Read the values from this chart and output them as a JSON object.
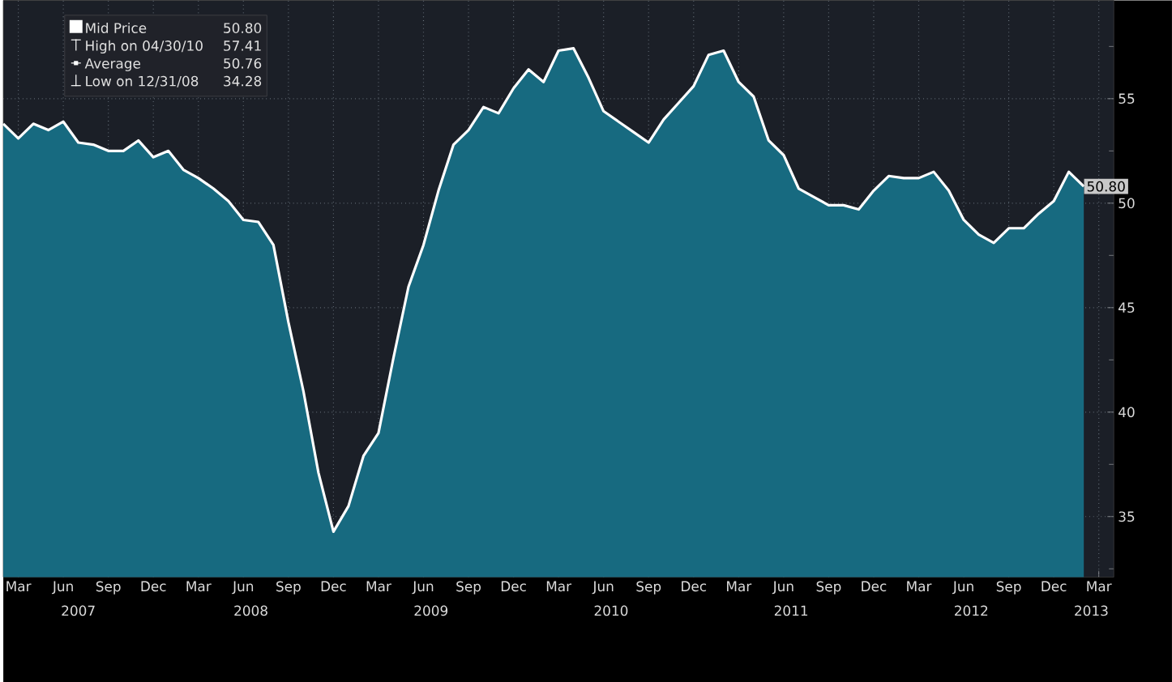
{
  "chart_data": {
    "type": "area",
    "x": [
      "2007-02",
      "2007-03",
      "2007-04",
      "2007-05",
      "2007-06",
      "2007-07",
      "2007-08",
      "2007-09",
      "2007-10",
      "2007-11",
      "2007-12",
      "2008-01",
      "2008-02",
      "2008-03",
      "2008-04",
      "2008-05",
      "2008-06",
      "2008-07",
      "2008-08",
      "2008-09",
      "2008-10",
      "2008-11",
      "2008-12",
      "2009-01",
      "2009-02",
      "2009-03",
      "2009-04",
      "2009-05",
      "2009-06",
      "2009-07",
      "2009-08",
      "2009-09",
      "2009-10",
      "2009-11",
      "2009-12",
      "2010-01",
      "2010-02",
      "2010-03",
      "2010-04",
      "2010-05",
      "2010-06",
      "2010-07",
      "2010-08",
      "2010-09",
      "2010-10",
      "2010-11",
      "2010-12",
      "2011-01",
      "2011-02",
      "2011-03",
      "2011-04",
      "2011-05",
      "2011-06",
      "2011-07",
      "2011-08",
      "2011-09",
      "2011-10",
      "2011-11",
      "2011-12",
      "2012-01",
      "2012-02",
      "2012-03",
      "2012-04",
      "2012-05",
      "2012-06",
      "2012-07",
      "2012-08",
      "2012-09",
      "2012-10",
      "2012-11",
      "2012-12",
      "2013-01",
      "2013-02"
    ],
    "series": [
      {
        "name": "Mid Price",
        "color": "#176a80",
        "values": [
          53.8,
          53.1,
          53.8,
          53.5,
          53.9,
          52.9,
          52.8,
          52.5,
          52.5,
          53.0,
          52.2,
          52.5,
          51.6,
          51.2,
          50.7,
          50.1,
          49.2,
          49.1,
          48.0,
          44.3,
          41.0,
          37.1,
          34.28,
          35.5,
          37.9,
          39.0,
          42.6,
          46.0,
          48.0,
          50.6,
          52.8,
          53.5,
          54.6,
          54.3,
          55.5,
          56.4,
          55.8,
          57.3,
          57.41,
          56.0,
          54.4,
          53.9,
          53.4,
          52.9,
          54.0,
          54.8,
          55.6,
          57.1,
          57.3,
          55.8,
          55.1,
          53.0,
          52.3,
          50.7,
          50.3,
          49.9,
          49.9,
          49.7,
          50.6,
          51.3,
          51.2,
          51.2,
          51.5,
          50.6,
          49.2,
          48.5,
          48.1,
          48.8,
          48.8,
          49.5,
          50.1,
          51.5,
          50.8
        ]
      }
    ],
    "xlim": [
      "2007-02",
      "2013-04"
    ],
    "ylim": [
      32.1,
      59.7
    ],
    "xticks": [
      {
        "value": "2007-03",
        "label": "Mar"
      },
      {
        "value": "2007-06",
        "label": "Jun"
      },
      {
        "value": "2007-09",
        "label": "Sep"
      },
      {
        "value": "2007-12",
        "label": "Dec"
      },
      {
        "value": "2008-03",
        "label": "Mar"
      },
      {
        "value": "2008-06",
        "label": "Jun"
      },
      {
        "value": "2008-09",
        "label": "Sep"
      },
      {
        "value": "2008-12",
        "label": "Dec"
      },
      {
        "value": "2009-03",
        "label": "Mar"
      },
      {
        "value": "2009-06",
        "label": "Jun"
      },
      {
        "value": "2009-09",
        "label": "Sep"
      },
      {
        "value": "2009-12",
        "label": "Dec"
      },
      {
        "value": "2010-03",
        "label": "Mar"
      },
      {
        "value": "2010-06",
        "label": "Jun"
      },
      {
        "value": "2010-09",
        "label": "Sep"
      },
      {
        "value": "2010-12",
        "label": "Dec"
      },
      {
        "value": "2011-03",
        "label": "Mar"
      },
      {
        "value": "2011-06",
        "label": "Jun"
      },
      {
        "value": "2011-09",
        "label": "Sep"
      },
      {
        "value": "2011-12",
        "label": "Dec"
      },
      {
        "value": "2012-03",
        "label": "Mar"
      },
      {
        "value": "2012-06",
        "label": "Jun"
      },
      {
        "value": "2012-09",
        "label": "Sep"
      },
      {
        "value": "2012-12",
        "label": "Dec"
      },
      {
        "value": "2013-03",
        "label": "Mar"
      }
    ],
    "yticks": [
      {
        "value": 32.5,
        "label": null
      },
      35,
      {
        "value": 37.5,
        "label": null
      },
      40,
      {
        "value": 42.5,
        "label": null
      },
      45,
      {
        "value": 47.5,
        "label": null
      },
      50,
      {
        "value": 52.5,
        "label": null
      },
      55,
      {
        "value": 57.5,
        "label": null
      }
    ],
    "grid": true,
    "legend": "top left",
    "annotations": [
      "50.80",
      "High on 04/30/10",
      "57.41",
      "Average",
      "50.76",
      "Low on 12/31/08",
      "34.28",
      {
        "text": "50.80",
        "x": "2013-02",
        "y": 50.8
      },
      "2007",
      "2008",
      "2009",
      "2010",
      "2011",
      "2012",
      "2013"
    ]
  }
}
